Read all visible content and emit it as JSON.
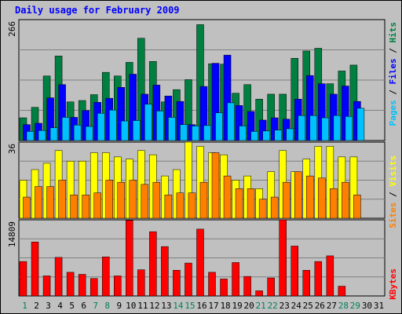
{
  "window": {
    "title": "Daily usage for February 2009"
  },
  "chart_data": [
    {
      "type": "bar",
      "panel": "hits-files-pages",
      "y_max_label": "266",
      "ylim": [
        0,
        266
      ],
      "categories": [
        "1",
        "2",
        "3",
        "4",
        "5",
        "6",
        "7",
        "8",
        "9",
        "10",
        "11",
        "12",
        "13",
        "14",
        "15",
        "16",
        "17",
        "18",
        "19",
        "20",
        "21",
        "22",
        "23",
        "24",
        "25",
        "26",
        "27",
        "28",
        "29",
        "30",
        "31"
      ],
      "legend": {
        "pages": "Pages",
        "files": "Files",
        "hits": "Hits",
        "sep": " / "
      },
      "series": [
        {
          "name": "Hits",
          "color": "#008040",
          "values": [
            50,
            73,
            142,
            186,
            85,
            88,
            101,
            150,
            142,
            172,
            225,
            174,
            85,
            112,
            134,
            255,
            169,
            168,
            104,
            123,
            91,
            102,
            102,
            181,
            197,
            203,
            125,
            153,
            166,
            0,
            0
          ]
        },
        {
          "name": "Files",
          "color": "#0000ff",
          "values": [
            35,
            38,
            94,
            123,
            51,
            66,
            84,
            93,
            117,
            146,
            102,
            122,
            98,
            86,
            35,
            119,
            170,
            188,
            77,
            64,
            45,
            50,
            47,
            91,
            143,
            125,
            102,
            120,
            86,
            0,
            0
          ]
        },
        {
          "name": "Pages",
          "color": "#00c0ff",
          "values": [
            20,
            22,
            28,
            51,
            34,
            31,
            60,
            67,
            43,
            44,
            80,
            65,
            51,
            35,
            32,
            33,
            61,
            83,
            32,
            20,
            21,
            23,
            26,
            55,
            55,
            50,
            55,
            53,
            71,
            0,
            0
          ]
        }
      ]
    },
    {
      "type": "bar",
      "panel": "visits-sites",
      "y_max_label": "36",
      "ylim": [
        0,
        36
      ],
      "categories": [
        "1",
        "2",
        "3",
        "4",
        "5",
        "6",
        "7",
        "8",
        "9",
        "10",
        "11",
        "12",
        "13",
        "14",
        "15",
        "16",
        "17",
        "18",
        "19",
        "20",
        "21",
        "22",
        "23",
        "24",
        "25",
        "26",
        "27",
        "28",
        "29",
        "30",
        "31"
      ],
      "legend": {
        "sites": "Sites",
        "visits": "Visits",
        "sep": " / "
      },
      "series": [
        {
          "name": "Visits",
          "color": "#ffff00",
          "values": [
            18,
            23,
            26,
            32,
            27,
            27,
            31,
            31,
            29,
            28,
            32,
            30,
            20,
            23,
            36,
            34,
            31,
            30,
            18,
            20,
            14,
            22,
            32,
            22,
            28,
            34,
            34,
            29,
            29,
            0,
            0
          ]
        },
        {
          "name": "Sites",
          "color": "#ff8000",
          "values": [
            10,
            15,
            15,
            18,
            11,
            11,
            12,
            18,
            17,
            18,
            16,
            17,
            11,
            12,
            12,
            17,
            31,
            20,
            14,
            14,
            9,
            10,
            17,
            22,
            20,
            19,
            14,
            17,
            11,
            0,
            0
          ]
        }
      ]
    },
    {
      "type": "bar",
      "panel": "kbytes",
      "y_max_label": "14809",
      "ylim": [
        0,
        14809
      ],
      "categories": [
        "1",
        "2",
        "3",
        "4",
        "5",
        "6",
        "7",
        "8",
        "9",
        "10",
        "11",
        "12",
        "13",
        "14",
        "15",
        "16",
        "17",
        "18",
        "19",
        "20",
        "21",
        "22",
        "23",
        "24",
        "25",
        "26",
        "27",
        "28",
        "29",
        "30",
        "31"
      ],
      "legend": {
        "kbytes": "KBytes"
      },
      "series": [
        {
          "name": "KBytes",
          "color": "#ff0000",
          "values": [
            6700,
            10500,
            3900,
            7500,
            4600,
            4200,
            3400,
            7600,
            3900,
            14700,
            5100,
            12500,
            9600,
            5000,
            6400,
            13000,
            4600,
            3300,
            6500,
            3800,
            1000,
            3500,
            14809,
            9700,
            5000,
            6700,
            7800,
            1900,
            0,
            0,
            0
          ]
        }
      ]
    }
  ],
  "x_axis": {
    "days": [
      "1",
      "2",
      "3",
      "4",
      "5",
      "6",
      "7",
      "8",
      "9",
      "10",
      "11",
      "12",
      "13",
      "14",
      "15",
      "16",
      "17",
      "18",
      "19",
      "20",
      "21",
      "22",
      "23",
      "24",
      "25",
      "26",
      "27",
      "28",
      "29",
      "30",
      "31"
    ],
    "weekend": [
      1,
      7,
      8,
      14,
      15,
      21,
      22,
      28,
      29
    ],
    "day_color": "#000000",
    "weekend_color": "#00805c"
  }
}
